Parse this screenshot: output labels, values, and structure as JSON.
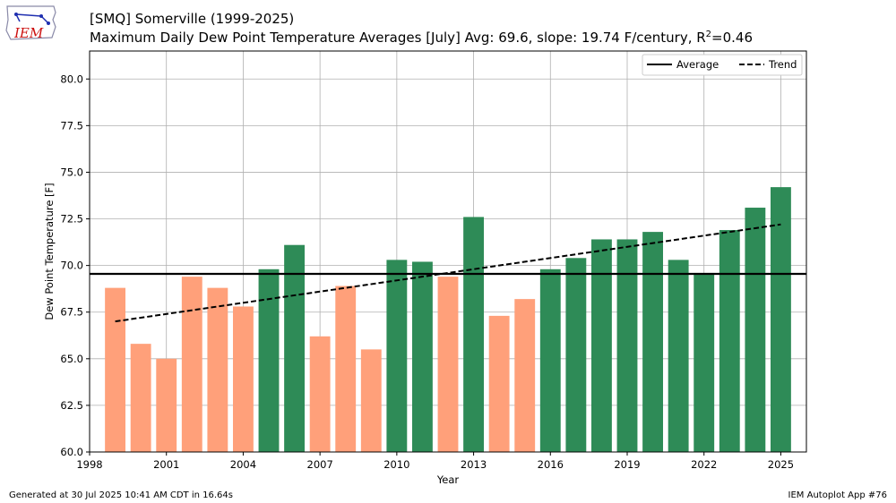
{
  "header": {
    "title": "[SMQ] Somerville (1999-2025)",
    "subtitle_main": "Maximum Daily Dew Point Temperature Averages [July]  Avg: 69.6, slope: 19.74 F/century, R",
    "subtitle_sup": "2",
    "subtitle_tail": "=0.46"
  },
  "logo": {
    "text": "IEM"
  },
  "footer": {
    "left": "Generated at 30 Jul 2025 10:41 AM CDT in 16.64s",
    "right": "IEM Autoplot App #76"
  },
  "chart_data": {
    "type": "bar",
    "xlabel": "Year",
    "ylabel": "Dew Point Temperature [F]",
    "xlim": [
      1998,
      2026
    ],
    "ylim": [
      60,
      81.5
    ],
    "x_ticks": [
      1998,
      2001,
      2004,
      2007,
      2010,
      2013,
      2016,
      2019,
      2022,
      2025
    ],
    "y_ticks": [
      60.0,
      62.5,
      65.0,
      67.5,
      70.0,
      72.5,
      75.0,
      77.5,
      80.0
    ],
    "grid": true,
    "years": [
      1999,
      2000,
      2001,
      2002,
      2003,
      2004,
      2005,
      2006,
      2007,
      2008,
      2009,
      2010,
      2011,
      2012,
      2013,
      2014,
      2015,
      2016,
      2017,
      2018,
      2019,
      2020,
      2021,
      2022,
      2023,
      2024,
      2025
    ],
    "values": [
      68.8,
      65.8,
      65.0,
      69.4,
      68.8,
      67.8,
      69.8,
      71.1,
      66.2,
      68.9,
      65.5,
      70.3,
      70.2,
      69.4,
      72.6,
      67.3,
      68.2,
      69.8,
      70.4,
      71.4,
      71.4,
      71.8,
      70.3,
      69.6,
      71.9,
      73.1,
      74.2
    ],
    "average": 69.55,
    "trend": {
      "start": [
        1999,
        67.0
      ],
      "end": [
        2025,
        72.2
      ]
    },
    "colors": {
      "above": "#2e8b57",
      "below": "#ffa07a",
      "average": "#000000",
      "trend": "#000000"
    },
    "legend": {
      "placement": "top-right",
      "entries": [
        {
          "label": "Average",
          "style": "solid"
        },
        {
          "label": "Trend",
          "style": "dashed"
        }
      ]
    }
  }
}
